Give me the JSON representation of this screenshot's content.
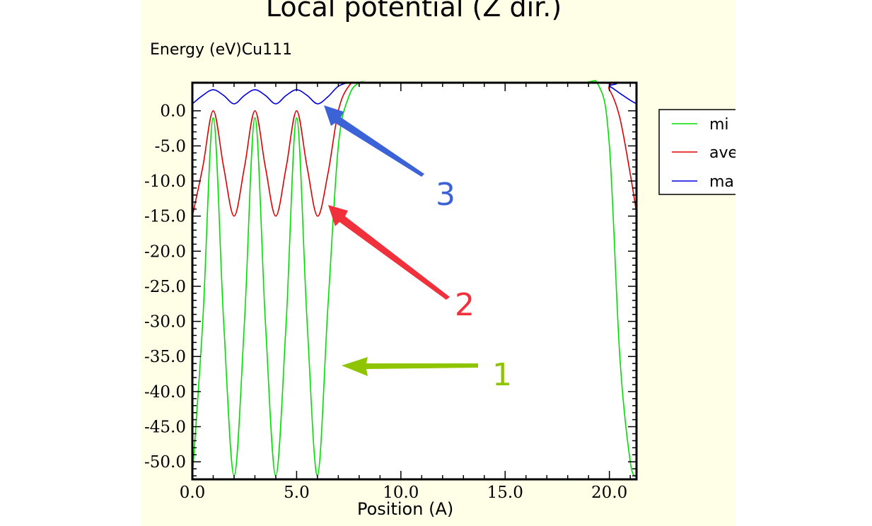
{
  "chart_data": {
    "type": "line",
    "title": "Local potential (Z dir.)",
    "ylabel": "Energy (eV)Cu111",
    "xlabel": "Position (A)",
    "xlim": [
      0,
      21.3
    ],
    "ylim": [
      -52.5,
      4
    ],
    "x_ticks": [
      "0.0",
      "5.0",
      "10.0",
      "15.0",
      "20.0"
    ],
    "y_ticks": [
      "0.0",
      "-5.0",
      "-10.0",
      "-15.0",
      "-20.0",
      "-25.0",
      "-30.0",
      "-35.0",
      "-40.0",
      "-45.0",
      "-50.0"
    ],
    "grid": false,
    "legend_position": "right",
    "series": [
      {
        "name": "mi",
        "color": "#00e000",
        "x": [
          0.0,
          0.5,
          1.0,
          1.5,
          2.0,
          2.5,
          3.0,
          3.5,
          4.0,
          4.5,
          5.0,
          5.5,
          6.0,
          6.5,
          7.0,
          7.5,
          8.0,
          8.5,
          10.0,
          14.0,
          18.5,
          19.5,
          20.0,
          20.5,
          21.0,
          21.3
        ],
        "y": [
          -52,
          -30,
          -1,
          -30,
          -52,
          -30,
          -1,
          -30,
          -52,
          -30,
          -1,
          -30,
          -52,
          -28,
          -5,
          2,
          4,
          4,
          4,
          4,
          4,
          3.5,
          -5,
          -35,
          -50,
          -52
        ]
      },
      {
        "name": "ave",
        "color": "#e00000",
        "x": [
          0.0,
          0.5,
          1.0,
          1.5,
          2.0,
          2.5,
          3.0,
          3.5,
          4.0,
          4.5,
          5.0,
          5.5,
          6.0,
          6.5,
          7.0,
          7.5,
          8.0,
          10.0,
          14.0,
          19.5,
          20.0,
          20.5,
          21.0,
          21.3
        ],
        "y": [
          -15,
          -8,
          0,
          -8,
          -15,
          -8,
          0,
          -8,
          -15,
          -8,
          0,
          -8,
          -15,
          -9,
          0,
          3.5,
          4,
          4,
          4,
          4,
          3,
          -1,
          -9,
          -14.5
        ]
      },
      {
        "name": "ma",
        "color": "#0000e0",
        "x": [
          0.0,
          0.5,
          1.0,
          1.5,
          2.0,
          2.5,
          3.0,
          3.5,
          4.0,
          4.5,
          5.0,
          5.5,
          6.0,
          6.5,
          7.0,
          7.5,
          8.0,
          10.0,
          19.5,
          20.0,
          20.5,
          21.0,
          21.3
        ],
        "y": [
          1,
          2.2,
          3,
          2.2,
          1,
          2.2,
          3,
          2.2,
          1,
          2.2,
          3,
          2.2,
          1,
          2,
          3.5,
          4,
          4,
          4,
          4,
          3.5,
          2.5,
          1.5,
          1
        ]
      }
    ],
    "annotations": [
      {
        "label": "1",
        "color": "#8fc400"
      },
      {
        "label": "2",
        "color": "#f0303a"
      },
      {
        "label": "3",
        "color": "#3c62d8"
      }
    ]
  }
}
